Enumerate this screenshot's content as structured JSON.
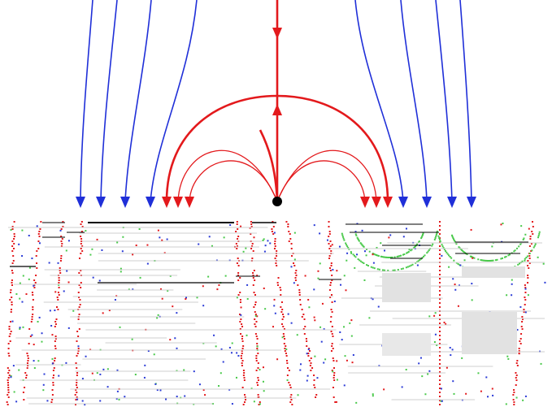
{
  "figure": {
    "colors": {
      "background": "#ffffff",
      "incoming_lines": "#1f2fd8",
      "separatrix": "#e3191c",
      "equilibrium_point": "#000000",
      "surface_lines": "#000000",
      "noise_gray": "#cfcfcf",
      "noise_green": "#49c94a",
      "noise_red": "#e3191c",
      "noise_blue": "#2b3bd6"
    },
    "icons": {
      "arrow": "triangle-arrowhead",
      "equilibrium": "filled-circle"
    }
  }
}
